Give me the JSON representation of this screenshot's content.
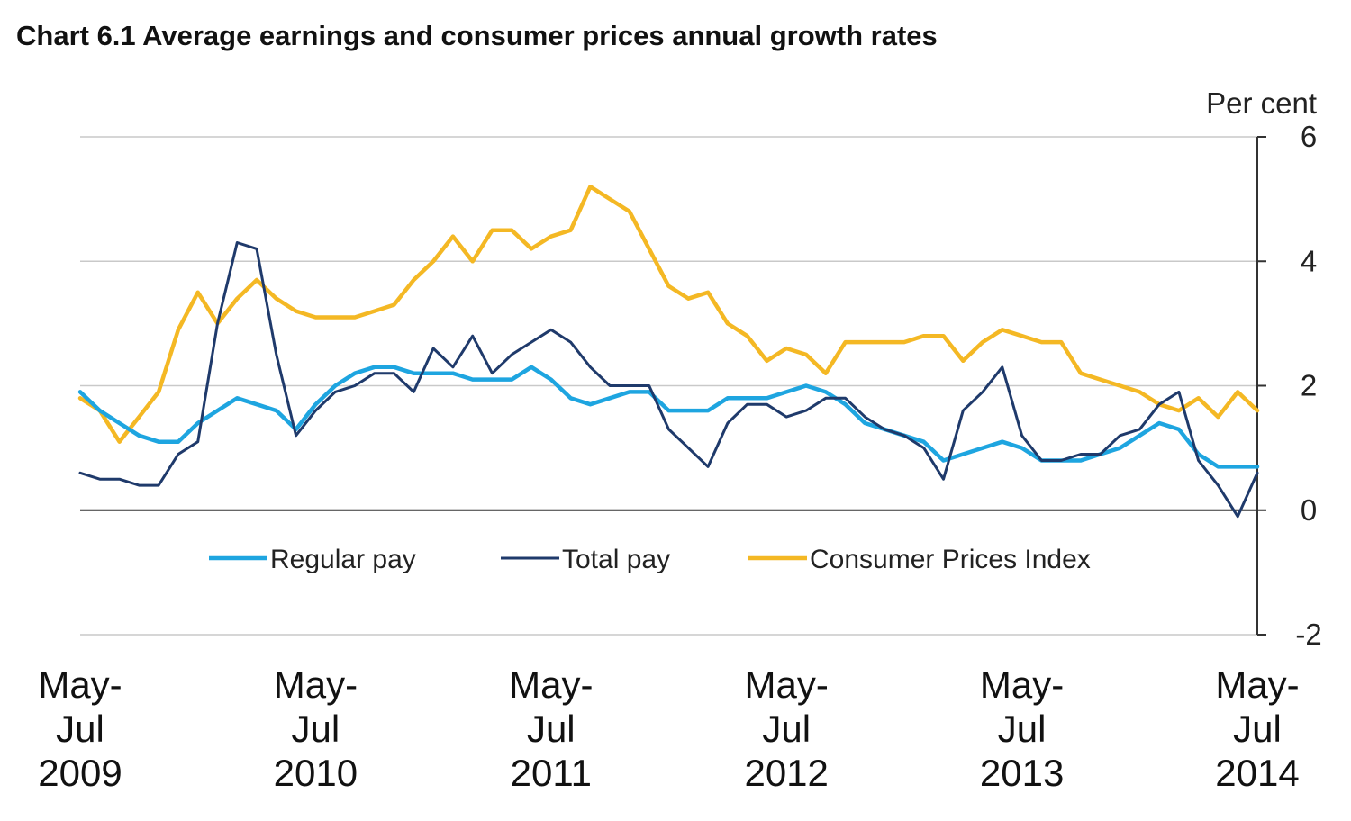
{
  "chart_data": {
    "type": "line",
    "title": "Chart 6.1 Average earnings and consumer prices annual growth rates",
    "ylabel": "Per cent",
    "ylim": [
      -2,
      6
    ],
    "yticks": [
      {
        "value": 6,
        "label": "6"
      },
      {
        "value": 4,
        "label": "4"
      },
      {
        "value": 2,
        "label": "2"
      },
      {
        "value": 0,
        "label": "0"
      },
      {
        "value": -2,
        "label": "-2"
      }
    ],
    "xlim": [
      0,
      60
    ],
    "xticks": [
      {
        "x": 0,
        "lines": [
          "May-",
          "Jul",
          "2009"
        ]
      },
      {
        "x": 12,
        "lines": [
          "May-",
          "Jul",
          "2010"
        ]
      },
      {
        "x": 24,
        "lines": [
          "May-",
          "Jul",
          "2011"
        ]
      },
      {
        "x": 36,
        "lines": [
          "May-",
          "Jul",
          "2012"
        ]
      },
      {
        "x": 48,
        "lines": [
          "May-",
          "Jul",
          "2013"
        ]
      },
      {
        "x": 60,
        "lines": [
          "May-",
          "Jul",
          "2014"
        ]
      }
    ],
    "legend_position": "bottom-center",
    "series": [
      {
        "name": "Regular pay",
        "color": "#1ea5e0",
        "values": [
          1.9,
          1.6,
          1.4,
          1.2,
          1.1,
          1.1,
          1.4,
          1.6,
          1.8,
          1.7,
          1.6,
          1.3,
          1.7,
          2.0,
          2.2,
          2.3,
          2.3,
          2.2,
          2.2,
          2.2,
          2.1,
          2.1,
          2.1,
          2.3,
          2.1,
          1.8,
          1.7,
          1.8,
          1.9,
          1.9,
          1.6,
          1.6,
          1.6,
          1.8,
          1.8,
          1.8,
          1.9,
          2.0,
          1.9,
          1.7,
          1.4,
          1.3,
          1.2,
          1.1,
          0.8,
          0.9,
          1.0,
          1.1,
          1.0,
          0.8,
          0.8,
          0.8,
          0.9,
          1.0,
          1.2,
          1.4,
          1.3,
          0.9,
          0.7,
          0.7,
          0.7
        ]
      },
      {
        "name": "Total pay",
        "color": "#1f3a6b",
        "values": [
          0.6,
          0.5,
          0.5,
          0.4,
          0.4,
          0.9,
          1.1,
          3.0,
          4.3,
          4.2,
          2.5,
          1.2,
          1.6,
          1.9,
          2.0,
          2.2,
          2.2,
          1.9,
          2.6,
          2.3,
          2.8,
          2.2,
          2.5,
          2.7,
          2.9,
          2.7,
          2.3,
          2.0,
          2.0,
          2.0,
          1.3,
          1.0,
          0.7,
          1.4,
          1.7,
          1.7,
          1.5,
          1.6,
          1.8,
          1.8,
          1.5,
          1.3,
          1.2,
          1.0,
          0.5,
          1.6,
          1.9,
          2.3,
          1.2,
          0.8,
          0.8,
          0.9,
          0.9,
          1.2,
          1.3,
          1.7,
          1.9,
          0.8,
          0.4,
          -0.1,
          0.6
        ]
      },
      {
        "name": "Consumer Prices Index",
        "color": "#f4b824",
        "values": [
          1.8,
          1.6,
          1.1,
          1.5,
          1.9,
          2.9,
          3.5,
          3.0,
          3.4,
          3.7,
          3.4,
          3.2,
          3.1,
          3.1,
          3.1,
          3.2,
          3.3,
          3.7,
          4.0,
          4.4,
          4.0,
          4.5,
          4.5,
          4.2,
          4.4,
          4.5,
          5.2,
          5.0,
          4.8,
          4.2,
          3.6,
          3.4,
          3.5,
          3.0,
          2.8,
          2.4,
          2.6,
          2.5,
          2.2,
          2.7,
          2.7,
          2.7,
          2.7,
          2.8,
          2.8,
          2.4,
          2.7,
          2.9,
          2.8,
          2.7,
          2.7,
          2.2,
          2.1,
          2.0,
          1.9,
          1.7,
          1.6,
          1.8,
          1.5,
          1.9,
          1.6
        ]
      }
    ]
  }
}
